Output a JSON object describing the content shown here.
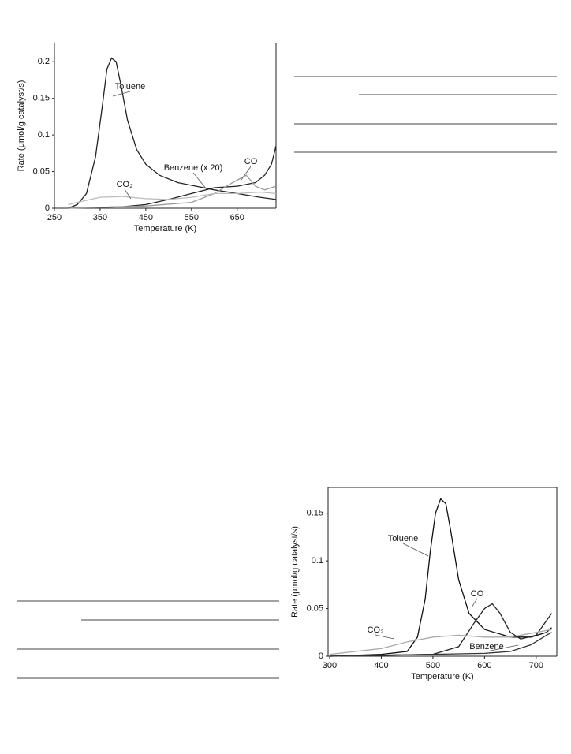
{
  "chart_data": [
    {
      "type": "line",
      "ylabel": "Rate (μmol/g catalyst/s)",
      "xlabel": "Temperature (K)",
      "xlim": [
        250,
        735
      ],
      "xticks": [
        250,
        350,
        450,
        550,
        650
      ],
      "ylim": [
        0,
        0.225
      ],
      "yticks": [
        0,
        0.05,
        0.1,
        0.15,
        0.2
      ],
      "series": [
        {
          "name": "Toluene",
          "color": "#222222",
          "x": [
            280,
            300,
            320,
            340,
            355,
            365,
            375,
            385,
            395,
            410,
            430,
            450,
            480,
            520,
            560,
            600,
            650,
            700,
            735
          ],
          "values": [
            0,
            0.005,
            0.02,
            0.07,
            0.14,
            0.19,
            0.205,
            0.2,
            0.17,
            0.12,
            0.08,
            0.06,
            0.045,
            0.035,
            0.03,
            0.025,
            0.02,
            0.015,
            0.012
          ]
        },
        {
          "name": "Benzene (x 20)",
          "color": "#222222",
          "x": [
            280,
            400,
            450,
            500,
            550,
            600,
            650,
            690,
            710,
            725,
            735
          ],
          "values": [
            0,
            0.002,
            0.005,
            0.012,
            0.02,
            0.028,
            0.03,
            0.035,
            0.045,
            0.06,
            0.085
          ]
        },
        {
          "name": "CO",
          "color": "#999999",
          "x": [
            280,
            450,
            550,
            600,
            640,
            670,
            690,
            710,
            735
          ],
          "values": [
            0,
            0.003,
            0.008,
            0.02,
            0.035,
            0.045,
            0.03,
            0.025,
            0.03
          ]
        },
        {
          "name": "CO₂",
          "color": "#bbbbbb",
          "x": [
            280,
            350,
            400,
            450,
            500,
            550,
            600,
            650,
            700,
            735
          ],
          "values": [
            0.005,
            0.015,
            0.016,
            0.013,
            0.012,
            0.015,
            0.02,
            0.02,
            0.022,
            0.02
          ]
        }
      ]
    },
    {
      "type": "line",
      "ylabel": "Rate (μmol/g catalyst/s)",
      "xlabel": "Temperature (K)",
      "xlim": [
        297,
        740
      ],
      "xticks": [
        300,
        400,
        500,
        600,
        700
      ],
      "ylim": [
        0,
        0.177
      ],
      "yticks": [
        0,
        0.05,
        0.1,
        0.15
      ],
      "series": [
        {
          "name": "Toluene",
          "color": "#111111",
          "x": [
            300,
            400,
            450,
            470,
            485,
            495,
            505,
            515,
            525,
            535,
            550,
            570,
            600,
            650,
            690,
            720,
            730
          ],
          "values": [
            0,
            0.002,
            0.005,
            0.02,
            0.06,
            0.11,
            0.15,
            0.165,
            0.16,
            0.13,
            0.08,
            0.045,
            0.028,
            0.02,
            0.02,
            0.025,
            0.03
          ]
        },
        {
          "name": "CO",
          "color": "#222222",
          "x": [
            300,
            500,
            550,
            580,
            600,
            615,
            630,
            650,
            670,
            700,
            730
          ],
          "values": [
            0,
            0.002,
            0.01,
            0.035,
            0.05,
            0.055,
            0.045,
            0.025,
            0.018,
            0.022,
            0.045
          ]
        },
        {
          "name": "CO₂",
          "color": "#aaaaaa",
          "x": [
            300,
            400,
            450,
            500,
            550,
            600,
            650,
            700,
            730
          ],
          "values": [
            0.002,
            0.008,
            0.015,
            0.02,
            0.022,
            0.02,
            0.02,
            0.025,
            0.028
          ]
        },
        {
          "name": "Benzene",
          "color": "#333333",
          "x": [
            300,
            600,
            650,
            690,
            720,
            730
          ],
          "values": [
            0,
            0.003,
            0.005,
            0.012,
            0.022,
            0.025
          ]
        }
      ]
    }
  ]
}
